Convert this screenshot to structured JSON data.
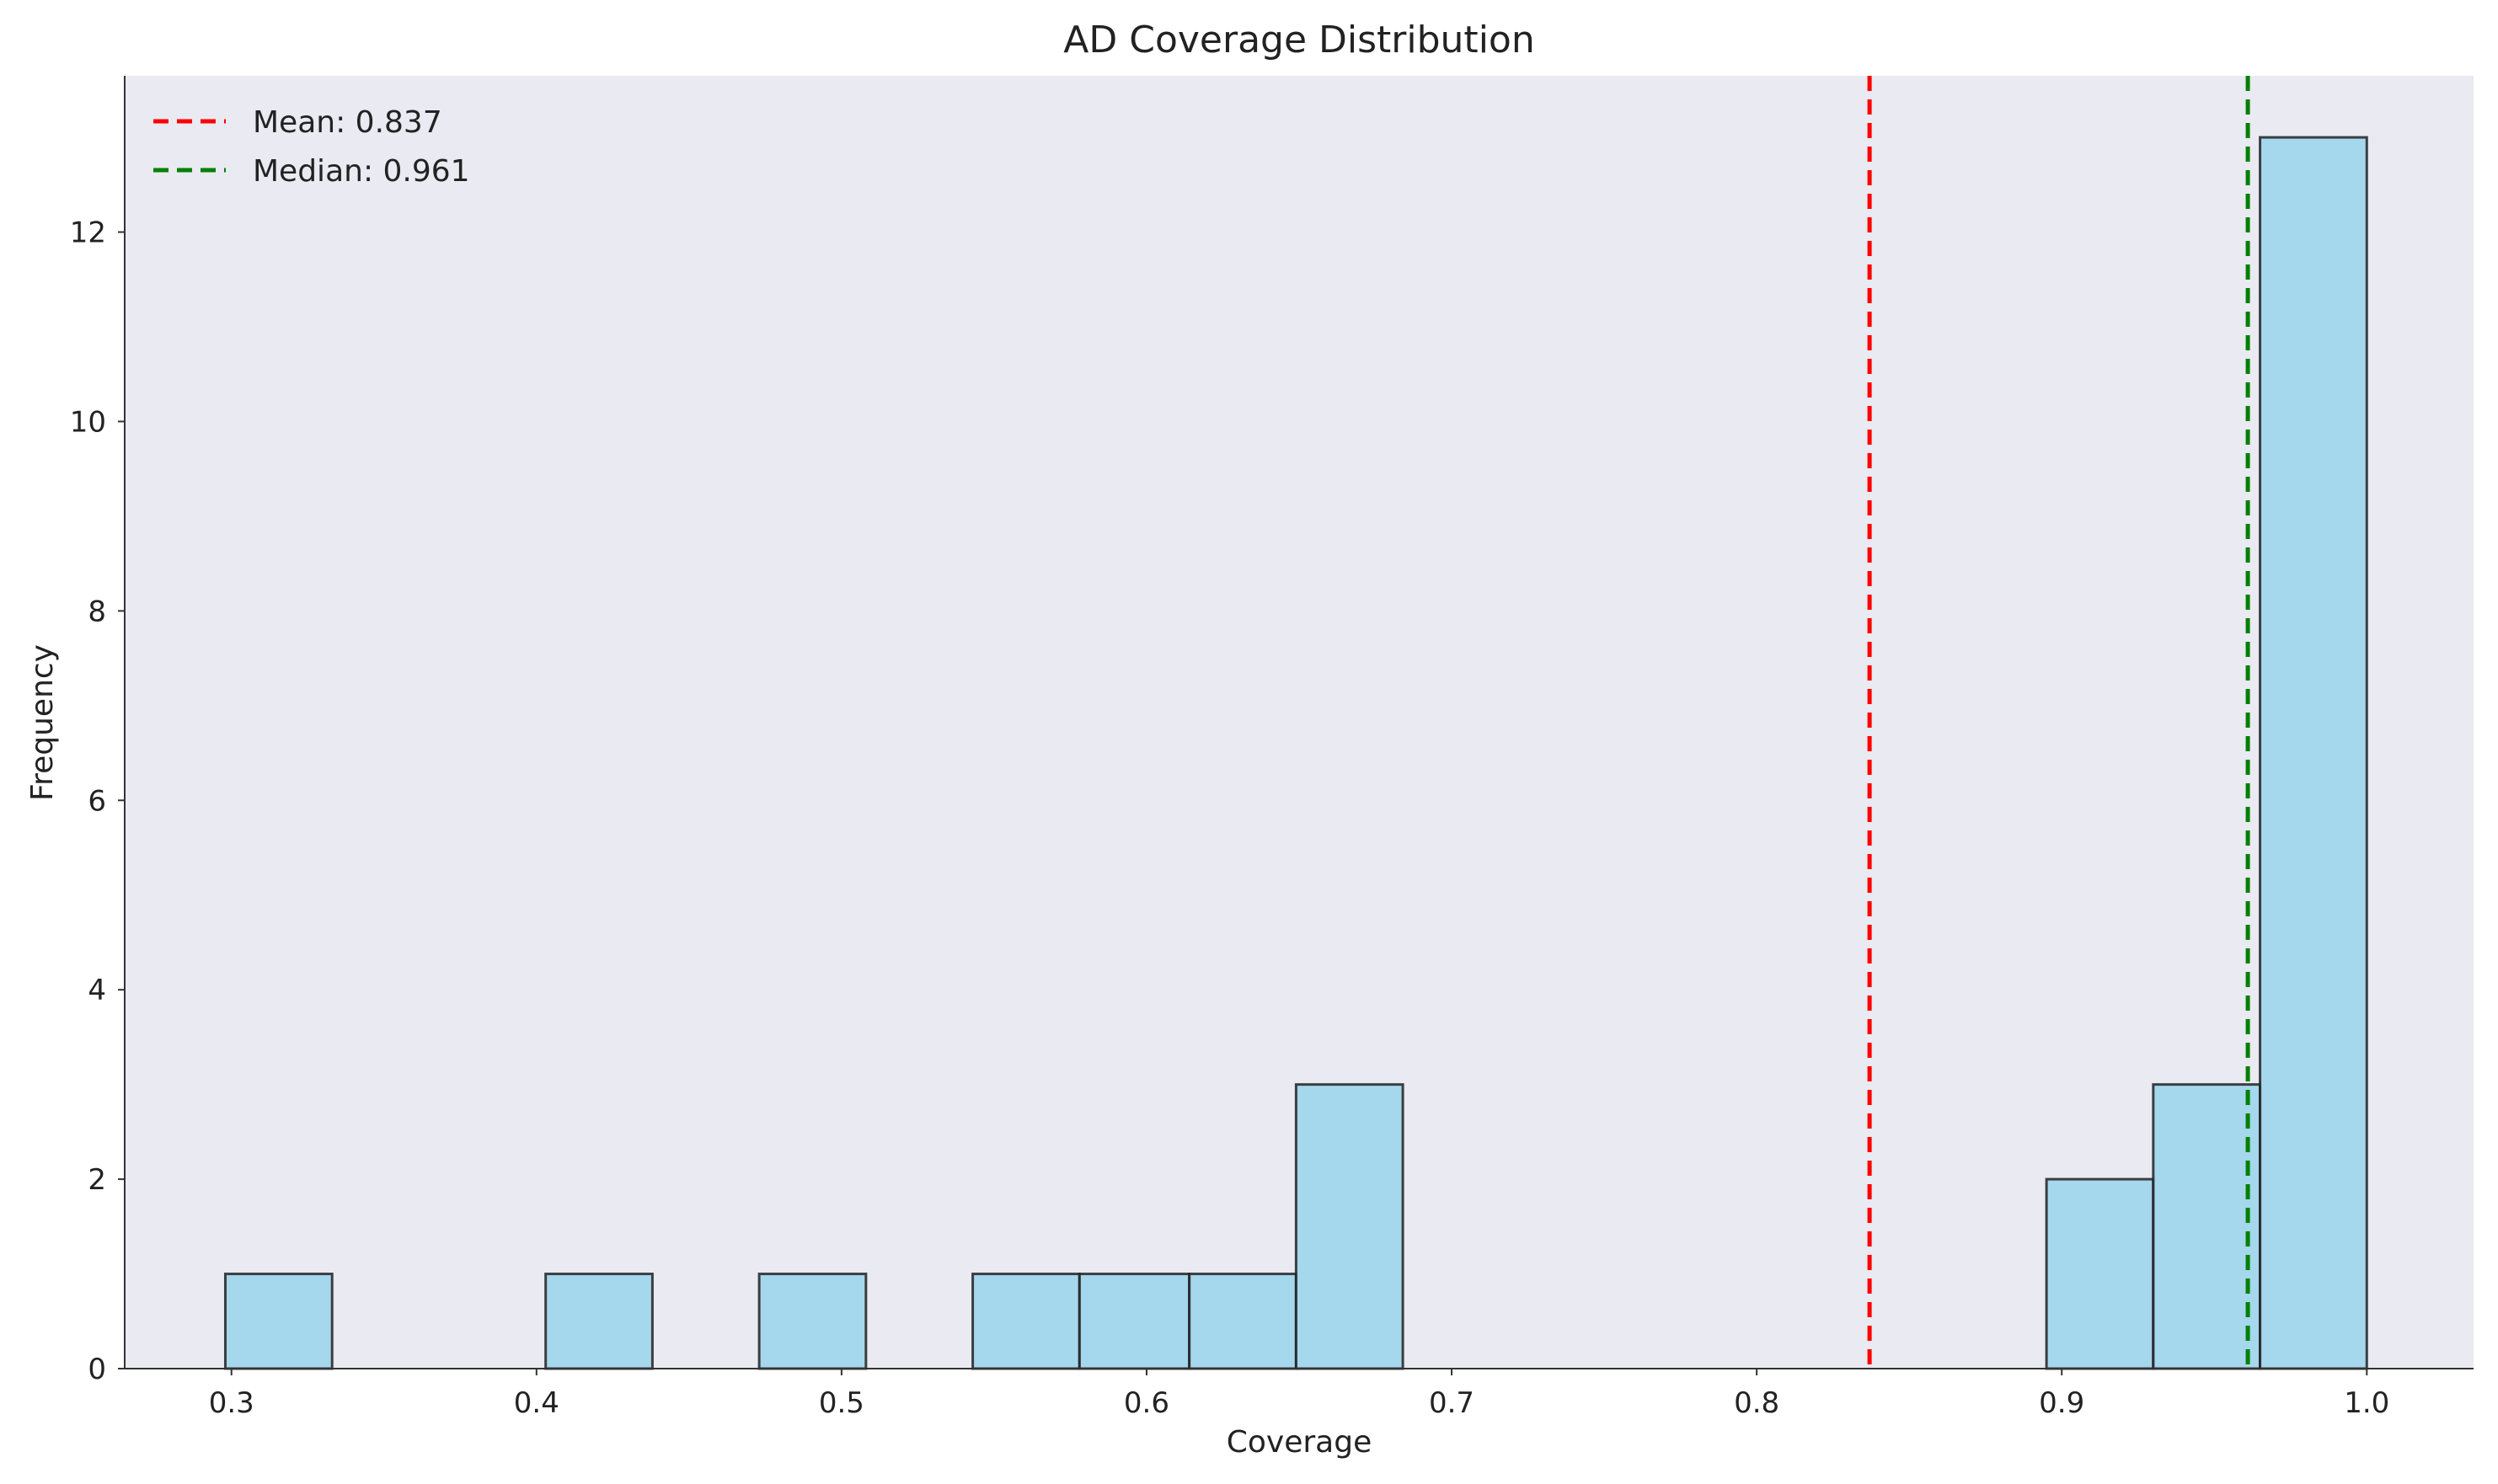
{
  "chart_data": {
    "type": "bar",
    "title": "AD Coverage Distribution",
    "xlabel": "Coverage",
    "ylabel": "Frequency",
    "xlim": [
      0.265,
      1.035
    ],
    "ylim": [
      0,
      13.65
    ],
    "xticks": [
      "0.3",
      "0.4",
      "0.5",
      "0.6",
      "0.7",
      "0.8",
      "0.9",
      "1.0"
    ],
    "yticks": [
      "0",
      "2",
      "4",
      "6",
      "8",
      "10",
      "12"
    ],
    "grid": false,
    "legend_position": "top-left",
    "bins": [
      {
        "x0": 0.298,
        "x1": 0.333,
        "count": 1
      },
      {
        "x0": 0.403,
        "x1": 0.438,
        "count": 1
      },
      {
        "x0": 0.473,
        "x1": 0.508,
        "count": 1
      },
      {
        "x0": 0.543,
        "x1": 0.578,
        "count": 1
      },
      {
        "x0": 0.578,
        "x1": 0.614,
        "count": 1
      },
      {
        "x0": 0.614,
        "x1": 0.649,
        "count": 1
      },
      {
        "x0": 0.649,
        "x1": 0.684,
        "count": 3
      },
      {
        "x0": 0.895,
        "x1": 0.93,
        "count": 2
      },
      {
        "x0": 0.93,
        "x1": 0.965,
        "count": 3
      },
      {
        "x0": 0.965,
        "x1": 1.0,
        "count": 13
      }
    ],
    "reference_lines": [
      {
        "label": "Mean: 0.837",
        "value": 0.837,
        "color": "#ff0000"
      },
      {
        "label": "Median: 0.961",
        "value": 0.961,
        "color": "#008000"
      }
    ],
    "bar_color": "#87ceeb",
    "bar_edge_color": "#222222",
    "background_color": "#eaeaf2"
  }
}
